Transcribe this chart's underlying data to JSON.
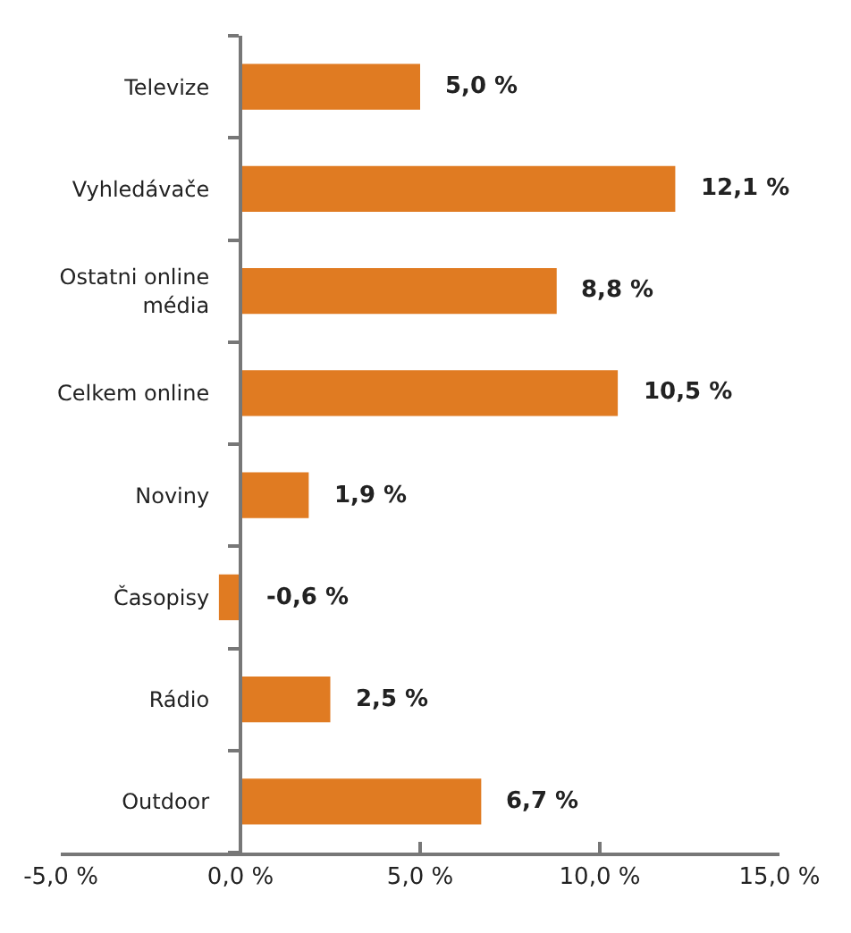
{
  "chart_data": {
    "type": "bar",
    "orientation": "horizontal",
    "categories": [
      "Televize",
      "Vyhledávače",
      "Ostatni online\nmédia",
      "Celkem online",
      "Noviny",
      "Časopisy",
      "Rádio",
      "Outdoor"
    ],
    "values": [
      5.0,
      12.1,
      8.8,
      10.5,
      1.9,
      -0.6,
      2.5,
      6.7
    ],
    "value_labels": [
      "5,0 %",
      "12,1 %",
      "8,8 %",
      "10,5 %",
      "1,9 %",
      "-0,6 %",
      "2,5 %",
      "6,7 %"
    ],
    "color": "#e07b22",
    "xlim": [
      -5,
      15
    ],
    "xticks": [
      {
        "value": -5,
        "label": "-5,0 %"
      },
      {
        "value": 0,
        "label": "0,0 %"
      },
      {
        "value": 5,
        "label": "5,0 %"
      },
      {
        "value": 10,
        "label": "10,0 %"
      },
      {
        "value": 15,
        "label": "15,0 %"
      }
    ],
    "legend": false
  }
}
